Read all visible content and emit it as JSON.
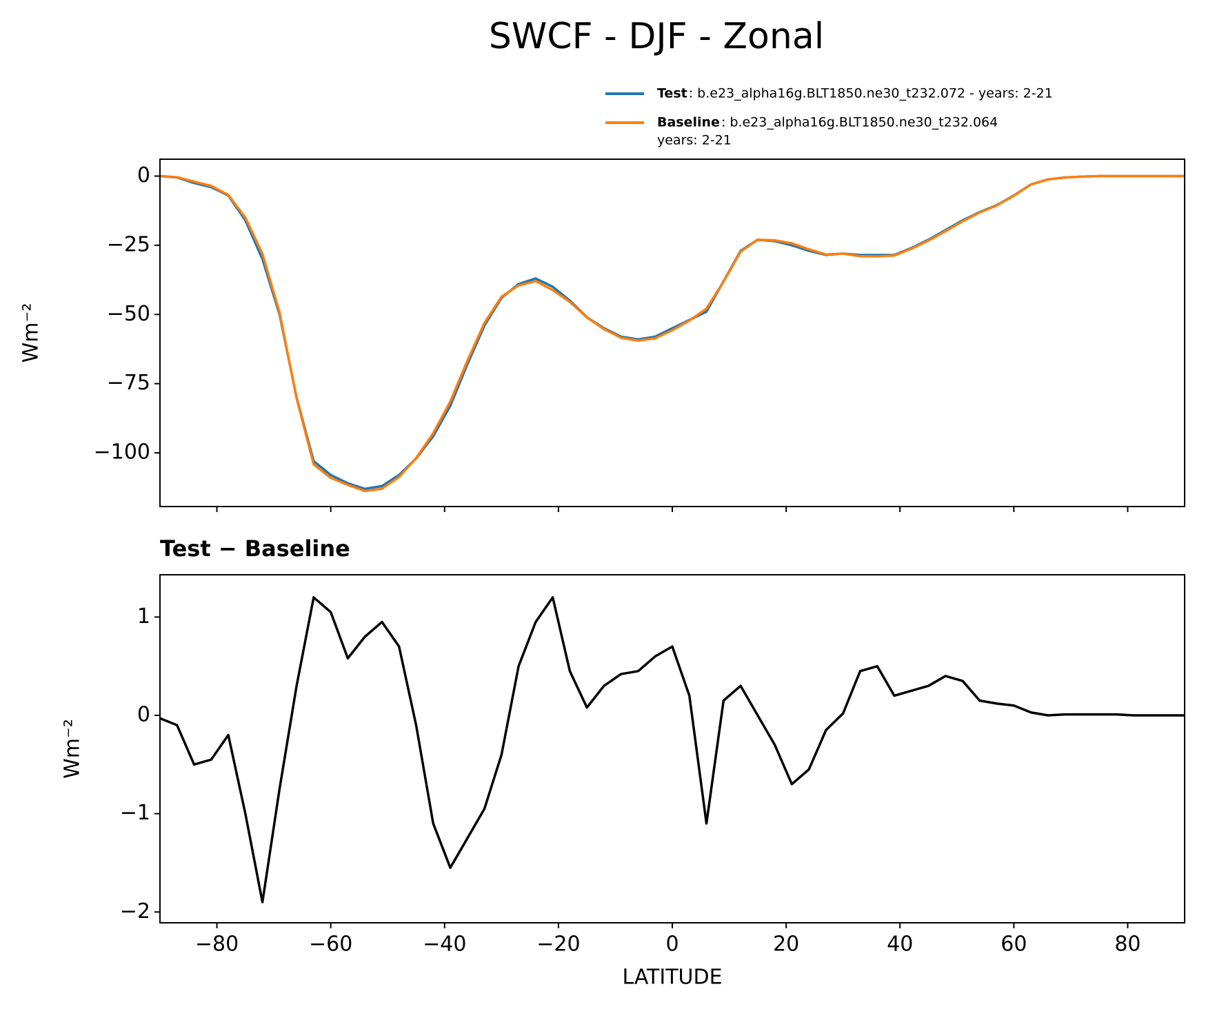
{
  "chart_data": [
    {
      "type": "line",
      "title": "SWCF - DJF - Zonal",
      "ylabel": "Wm⁻²",
      "x": [
        -90,
        -87,
        -84,
        -81,
        -78,
        -75,
        -72,
        -69,
        -66,
        -63,
        -60,
        -57,
        -54,
        -51,
        -48,
        -45,
        -42,
        -39,
        -36,
        -33,
        -30,
        -27,
        -24,
        -21,
        -18,
        -15,
        -12,
        -9,
        -6,
        -3,
        0,
        3,
        6,
        9,
        12,
        15,
        18,
        21,
        24,
        27,
        30,
        33,
        36,
        39,
        42,
        45,
        48,
        51,
        54,
        57,
        60,
        63,
        66,
        69,
        72,
        75,
        78,
        81,
        84,
        87,
        90
      ],
      "series": [
        {
          "name": "Test",
          "description": [
            ": b.e23_alpha16g.BLT1850.ne30_t232.072 - years: 2-21"
          ],
          "color": "#1f77b4",
          "values": [
            0,
            -0.5,
            -2.5,
            -4,
            -7,
            -16,
            -30,
            -50,
            -80,
            -103,
            -108,
            -111,
            -113,
            -112,
            -108,
            -102,
            -94,
            -83,
            -68,
            -54,
            -44,
            -39,
            -37,
            -40,
            -45,
            -51,
            -55,
            -58,
            -59,
            -58,
            -55,
            -52,
            -49,
            -38,
            -27,
            -23,
            -23.5,
            -25,
            -27,
            -28.5,
            -28,
            -28.5,
            -28.5,
            -28.5,
            -26,
            -23,
            -19.5,
            -16,
            -13,
            -10.5,
            -7,
            -3,
            -1.2,
            -0.5,
            -0.2,
            0,
            0,
            0,
            0,
            0,
            0
          ]
        },
        {
          "name": "Baseline",
          "description": [
            ": b.e23_alpha16g.BLT1850.ne30_t232.064",
            "years: 2-21"
          ],
          "color": "#ff7f0e",
          "values": [
            0.03,
            -0.4,
            -2.0,
            -3.55,
            -6.8,
            -15,
            -28.1,
            -49.25,
            -80.3,
            -104.2,
            -109.05,
            -111.58,
            -113.8,
            -112.95,
            -108.7,
            -101.9,
            -92.9,
            -81.45,
            -66.75,
            -53.05,
            -43.6,
            -39.5,
            -37.95,
            -41.2,
            -45.45,
            -51.08,
            -55.3,
            -58.42,
            -59.45,
            -58.6,
            -55.7,
            -52.2,
            -47.9,
            -38.15,
            -27.3,
            -23,
            -23.2,
            -24.3,
            -26.45,
            -28.35,
            -28.02,
            -28.95,
            -29,
            -28.7,
            -26.25,
            -23.3,
            -19.9,
            -16.35,
            -13.15,
            -10.62,
            -7.1,
            -3.03,
            -1.2,
            -0.51,
            -0.21,
            -0.01,
            -0.01,
            0,
            0,
            0,
            0
          ]
        }
      ],
      "xlim": [
        -90,
        90
      ],
      "xticks": [
        {
          "value": -80,
          "label": "−80"
        },
        {
          "value": -60,
          "label": "−60"
        },
        {
          "value": -40,
          "label": "−40"
        },
        {
          "value": -20,
          "label": "−20"
        },
        0,
        20,
        40,
        60,
        80
      ],
      "xtick_labels": false,
      "ylim": [
        -119.4,
        6.1
      ],
      "yticks": [
        {
          "value": -100,
          "label": "−100"
        },
        {
          "value": -75,
          "label": "−75"
        },
        {
          "value": -50,
          "label": "−50"
        },
        {
          "value": -25,
          "label": "−25"
        },
        0
      ],
      "legend": "upper right"
    },
    {
      "type": "line",
      "title": "Test − Baseline",
      "ylabel": "Wm⁻²",
      "xlabel": "LATITUDE",
      "x": [
        -90,
        -87,
        -84,
        -81,
        -78,
        -75,
        -72,
        -69,
        -66,
        -63,
        -60,
        -57,
        -54,
        -51,
        -48,
        -45,
        -42,
        -39,
        -36,
        -33,
        -30,
        -27,
        -24,
        -21,
        -18,
        -15,
        -12,
        -9,
        -6,
        -3,
        0,
        3,
        6,
        9,
        12,
        15,
        18,
        21,
        24,
        27,
        30,
        33,
        36,
        39,
        42,
        45,
        48,
        51,
        54,
        57,
        60,
        63,
        66,
        69,
        72,
        75,
        78,
        81,
        84,
        87,
        90
      ],
      "color": "#000000",
      "values": [
        -0.03,
        -0.1,
        -0.5,
        -0.45,
        -0.2,
        -1.0,
        -1.9,
        -0.75,
        0.3,
        1.2,
        1.05,
        0.58,
        0.8,
        0.95,
        0.7,
        -0.1,
        -1.1,
        -1.55,
        -1.25,
        -0.95,
        -0.4,
        0.5,
        0.95,
        1.2,
        0.45,
        0.08,
        0.3,
        0.42,
        0.45,
        0.6,
        0.7,
        0.2,
        -1.1,
        0.15,
        0.3,
        0.0,
        -0.3,
        -0.7,
        -0.55,
        -0.15,
        0.02,
        0.45,
        0.5,
        0.2,
        0.25,
        0.3,
        0.4,
        0.35,
        0.15,
        0.12,
        0.1,
        0.03,
        0.0,
        0.01,
        0.01,
        0.01,
        0.01,
        0,
        0,
        0,
        0
      ],
      "xlim": [
        -90,
        90
      ],
      "xticks": [
        {
          "value": -80,
          "label": "−80"
        },
        {
          "value": -60,
          "label": "−60"
        },
        {
          "value": -40,
          "label": "−40"
        },
        {
          "value": -20,
          "label": "−20"
        },
        0,
        20,
        40,
        60,
        80
      ],
      "xtick_labels": true,
      "ylim": [
        -2.11,
        1.43
      ],
      "yticks": [
        {
          "value": -2,
          "label": "−2"
        },
        {
          "value": -1,
          "label": "−1"
        },
        0,
        1
      ]
    }
  ]
}
